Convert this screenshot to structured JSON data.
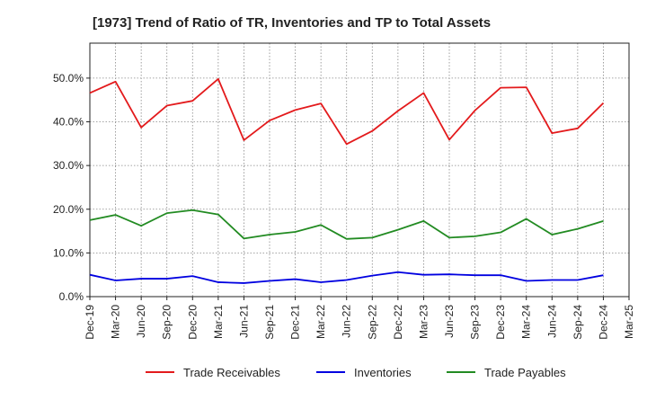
{
  "chart_data": {
    "type": "line",
    "title": "[1973]  Trend of Ratio of TR, Inventories and TP to Total Assets",
    "xlabel": "",
    "ylabel": "",
    "x": [
      "Dec-19",
      "Mar-20",
      "Jun-20",
      "Sep-20",
      "Dec-20",
      "Mar-21",
      "Jun-21",
      "Sep-21",
      "Dec-21",
      "Mar-22",
      "Jun-22",
      "Sep-22",
      "Dec-22",
      "Mar-23",
      "Jun-23",
      "Sep-23",
      "Dec-23",
      "Mar-24",
      "Jun-24",
      "Sep-24",
      "Dec-24"
    ],
    "x_ticks": [
      "Dec-19",
      "Mar-20",
      "Jun-20",
      "Sep-20",
      "Dec-20",
      "Mar-21",
      "Jun-21",
      "Sep-21",
      "Dec-21",
      "Mar-22",
      "Jun-22",
      "Sep-22",
      "Dec-22",
      "Mar-23",
      "Jun-23",
      "Sep-23",
      "Dec-23",
      "Mar-24",
      "Jun-24",
      "Sep-24",
      "Dec-24",
      "Mar-25"
    ],
    "ylim": [
      0,
      0.58
    ],
    "y_ticks": [
      0,
      0.1,
      0.2,
      0.3,
      0.4,
      0.5
    ],
    "y_tick_labels": [
      "0.0%",
      "10.0%",
      "20.0%",
      "30.0%",
      "40.0%",
      "50.0%"
    ],
    "grid": true,
    "legend_position": "bottom",
    "series": [
      {
        "name": "Trade Receivables",
        "color": "#e31a1c",
        "values": [
          0.466,
          0.492,
          0.387,
          0.437,
          0.448,
          0.498,
          0.358,
          0.403,
          0.427,
          0.442,
          0.349,
          0.379,
          0.425,
          0.466,
          0.359,
          0.426,
          0.478,
          0.479,
          0.374,
          0.385,
          0.443
        ]
      },
      {
        "name": "Inventories",
        "color": "#0000e0",
        "values": [
          0.05,
          0.037,
          0.041,
          0.041,
          0.047,
          0.033,
          0.031,
          0.036,
          0.04,
          0.033,
          0.038,
          0.048,
          0.056,
          0.05,
          0.051,
          0.049,
          0.049,
          0.036,
          0.038,
          0.038,
          0.049
        ]
      },
      {
        "name": "Trade Payables",
        "color": "#228b22",
        "values": [
          0.175,
          0.187,
          0.162,
          0.191,
          0.198,
          0.188,
          0.133,
          0.142,
          0.148,
          0.164,
          0.132,
          0.135,
          0.153,
          0.173,
          0.135,
          0.138,
          0.147,
          0.178,
          0.142,
          0.155,
          0.173
        ]
      }
    ]
  }
}
